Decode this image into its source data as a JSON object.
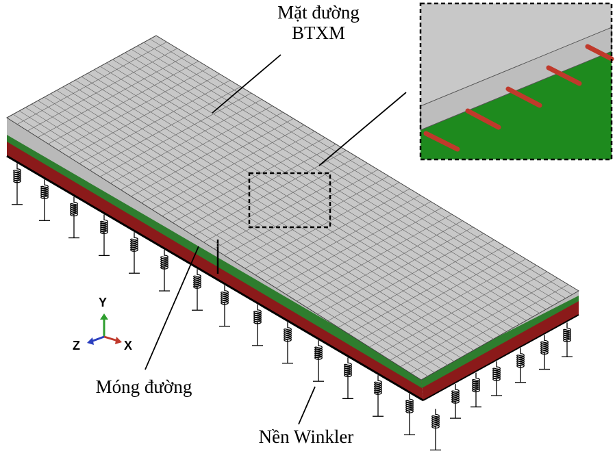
{
  "labels": {
    "top_line1": "Mặt đường",
    "top_line2": "BTXM",
    "base": "Móng đường",
    "foundation": "Nền Winkler"
  },
  "axes": {
    "y": "Y",
    "z": "Z",
    "x": "X"
  }
}
